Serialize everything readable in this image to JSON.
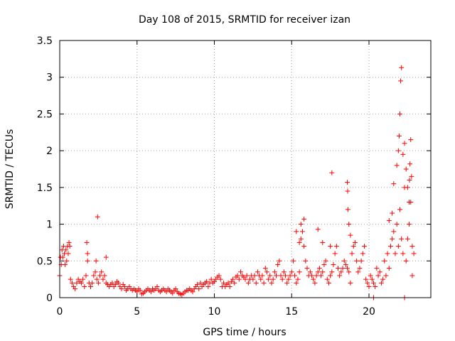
{
  "chart_data": {
    "type": "scatter",
    "title": "Day 108 of 2015, SRMTID for receiver izan",
    "xlabel": "GPS time / hours",
    "ylabel": "SRMTID / TECUs",
    "xlim": [
      0,
      24
    ],
    "ylim": [
      0,
      3.5
    ],
    "xticks": [
      0,
      5,
      10,
      15,
      20
    ],
    "xtick_labels": [
      "0",
      "5",
      "10",
      "15",
      "20"
    ],
    "yticks": [
      0,
      0.5,
      1,
      1.5,
      2,
      2.5,
      3,
      3.5
    ],
    "ytick_labels": [
      "0",
      "0.5",
      "1",
      "1.5",
      "2",
      "2.5",
      "3",
      "3.5"
    ],
    "grid": true,
    "marker": "+",
    "color": "#ff0000",
    "series": [
      {
        "name": "SRMTID",
        "x": [
          0.0,
          0.1,
          0.2,
          0.3,
          0.4,
          0.5,
          0.6,
          0.7,
          0.8,
          0.9,
          1.0,
          1.1,
          1.2,
          1.3,
          1.4,
          1.5,
          1.6,
          1.7,
          1.8,
          1.9,
          2.0,
          2.1,
          2.2,
          2.3,
          2.4,
          2.5,
          2.6,
          2.7,
          2.8,
          2.9,
          3.0,
          3.1,
          3.2,
          3.3,
          3.4,
          3.5,
          3.6,
          3.7,
          3.8,
          3.9,
          4.0,
          4.1,
          4.2,
          4.3,
          4.4,
          4.5,
          4.6,
          4.7,
          4.8,
          4.9,
          5.0,
          5.1,
          5.2,
          5.3,
          5.4,
          5.5,
          5.6,
          5.7,
          5.8,
          5.9,
          6.0,
          6.1,
          6.2,
          6.3,
          6.4,
          6.5,
          6.6,
          6.7,
          6.8,
          6.9,
          7.0,
          7.1,
          7.2,
          7.3,
          7.4,
          7.5,
          7.6,
          7.7,
          7.8,
          7.9,
          8.0,
          8.1,
          8.2,
          8.3,
          8.4,
          8.5,
          8.6,
          8.7,
          8.8,
          8.9,
          9.0,
          9.1,
          9.2,
          9.3,
          9.4,
          9.5,
          9.6,
          9.7,
          9.8,
          9.9,
          10.0,
          10.1,
          10.2,
          10.3,
          10.4,
          10.5,
          10.6,
          10.7,
          10.8,
          10.9,
          11.0,
          11.1,
          11.2,
          11.3,
          11.4,
          11.5,
          11.6,
          11.7,
          11.8,
          11.9,
          12.0,
          12.1,
          12.2,
          12.3,
          12.4,
          12.5,
          12.6,
          12.7,
          12.8,
          12.9,
          13.0,
          13.1,
          13.2,
          13.3,
          13.4,
          13.5,
          13.6,
          13.7,
          13.8,
          13.9,
          14.0,
          14.1,
          14.2,
          14.3,
          14.4,
          14.5,
          14.6,
          14.7,
          14.8,
          14.9,
          15.0,
          15.1,
          15.2,
          15.3,
          15.4,
          15.5,
          15.6,
          15.7,
          15.8,
          15.9,
          16.0,
          16.1,
          16.2,
          16.3,
          16.4,
          16.5,
          16.6,
          16.7,
          16.8,
          16.9,
          17.0,
          17.1,
          17.2,
          17.3,
          17.4,
          17.5,
          17.6,
          17.7,
          17.8,
          17.9,
          18.0,
          18.1,
          18.2,
          18.3,
          18.4,
          18.5,
          18.6,
          18.7,
          18.8,
          18.9,
          19.0,
          19.1,
          19.2,
          19.3,
          19.4,
          19.5,
          19.6,
          19.7,
          19.8,
          19.9,
          20.0,
          20.1,
          20.2,
          20.3,
          20.4,
          20.5,
          20.6,
          20.7,
          20.8,
          20.9,
          21.0,
          21.1,
          21.2,
          21.3,
          21.4,
          21.5,
          21.6,
          21.7,
          21.8,
          21.9,
          22.0,
          22.1,
          22.2,
          22.3,
          22.4,
          22.5,
          22.6,
          22.7,
          22.8,
          22.9,
          0.05,
          0.15,
          0.25,
          0.35,
          0.45,
          0.55,
          0.65,
          1.75,
          1.8,
          2.35,
          2.45,
          3.0,
          15.3,
          15.5,
          15.6,
          15.8,
          16.7,
          17.0,
          17.5,
          17.6,
          18.6,
          18.62,
          18.64,
          18.7,
          18.8,
          21.3,
          21.5,
          21.6,
          21.8,
          21.9,
          21.95,
          22.0,
          22.05,
          22.1,
          22.2,
          22.3,
          22.4,
          22.5,
          22.6,
          22.62,
          22.65,
          22.7,
          22.75,
          22.8,
          20.3,
          22.3
        ],
        "y": [
          0.3,
          0.45,
          0.55,
          0.6,
          0.65,
          0.7,
          0.75,
          0.25,
          0.2,
          0.15,
          0.12,
          0.2,
          0.25,
          0.22,
          0.2,
          0.25,
          0.15,
          0.3,
          0.5,
          0.2,
          0.15,
          0.2,
          0.3,
          0.35,
          0.25,
          0.2,
          0.3,
          0.35,
          0.25,
          0.3,
          0.2,
          0.18,
          0.15,
          0.18,
          0.2,
          0.15,
          0.18,
          0.22,
          0.2,
          0.15,
          0.12,
          0.18,
          0.15,
          0.1,
          0.12,
          0.15,
          0.12,
          0.1,
          0.12,
          0.1,
          0.08,
          0.12,
          0.1,
          0.05,
          0.06,
          0.08,
          0.1,
          0.12,
          0.1,
          0.08,
          0.12,
          0.1,
          0.12,
          0.15,
          0.1,
          0.08,
          0.1,
          0.12,
          0.1,
          0.08,
          0.12,
          0.1,
          0.08,
          0.06,
          0.1,
          0.12,
          0.08,
          0.06,
          0.05,
          0.04,
          0.06,
          0.08,
          0.1,
          0.1,
          0.12,
          0.1,
          0.08,
          0.12,
          0.15,
          0.18,
          0.12,
          0.2,
          0.15,
          0.18,
          0.2,
          0.22,
          0.15,
          0.2,
          0.25,
          0.2,
          0.22,
          0.25,
          0.28,
          0.3,
          0.25,
          0.15,
          0.2,
          0.15,
          0.18,
          0.2,
          0.15,
          0.22,
          0.25,
          0.2,
          0.28,
          0.3,
          0.25,
          0.35,
          0.3,
          0.28,
          0.25,
          0.3,
          0.2,
          0.25,
          0.3,
          0.25,
          0.3,
          0.2,
          0.35,
          0.3,
          0.25,
          0.3,
          0.2,
          0.4,
          0.35,
          0.25,
          0.3,
          0.2,
          0.25,
          0.35,
          0.3,
          0.45,
          0.5,
          0.3,
          0.25,
          0.35,
          0.3,
          0.2,
          0.25,
          0.3,
          0.35,
          0.5,
          0.3,
          0.2,
          0.25,
          0.35,
          0.8,
          0.9,
          0.7,
          0.5,
          0.4,
          0.3,
          0.35,
          0.3,
          0.25,
          0.2,
          0.3,
          0.35,
          0.4,
          0.3,
          0.35,
          0.45,
          0.5,
          0.25,
          0.2,
          0.3,
          0.35,
          0.45,
          0.6,
          0.7,
          0.4,
          0.3,
          0.35,
          0.4,
          0.5,
          0.45,
          0.4,
          0.35,
          0.2,
          0.6,
          0.7,
          0.75,
          0.5,
          0.35,
          0.4,
          0.5,
          0.6,
          0.7,
          0.25,
          0.2,
          0.15,
          0.3,
          0.25,
          0.2,
          0.15,
          0.4,
          0.3,
          0.35,
          0.2,
          0.25,
          0.5,
          0.3,
          0.6,
          0.4,
          0.7,
          0.8,
          0.9,
          0.6,
          1.0,
          0.7,
          1.2,
          0.8,
          0.6,
          1.5,
          0.5,
          0.8,
          1.0,
          1.3,
          0.7,
          0.6,
          0.55,
          0.65,
          0.7,
          0.45,
          0.5,
          0.6,
          0.7,
          0.75,
          0.6,
          0.5,
          1.1,
          0.55,
          0.9,
          0.75,
          1.0,
          1.07,
          0.93,
          0.75,
          0.7,
          1.7,
          1.57,
          1.45,
          1.2,
          1.0,
          0.85,
          1.05,
          1.15,
          1.55,
          1.8,
          2.0,
          2.2,
          2.5,
          2.95,
          3.13,
          1.95,
          2.1,
          1.75,
          1.5,
          1.3,
          1.6,
          1.82,
          2.15,
          1.65,
          0.3,
          0.0,
          0.0
        ],
        "style": "plus"
      }
    ]
  }
}
